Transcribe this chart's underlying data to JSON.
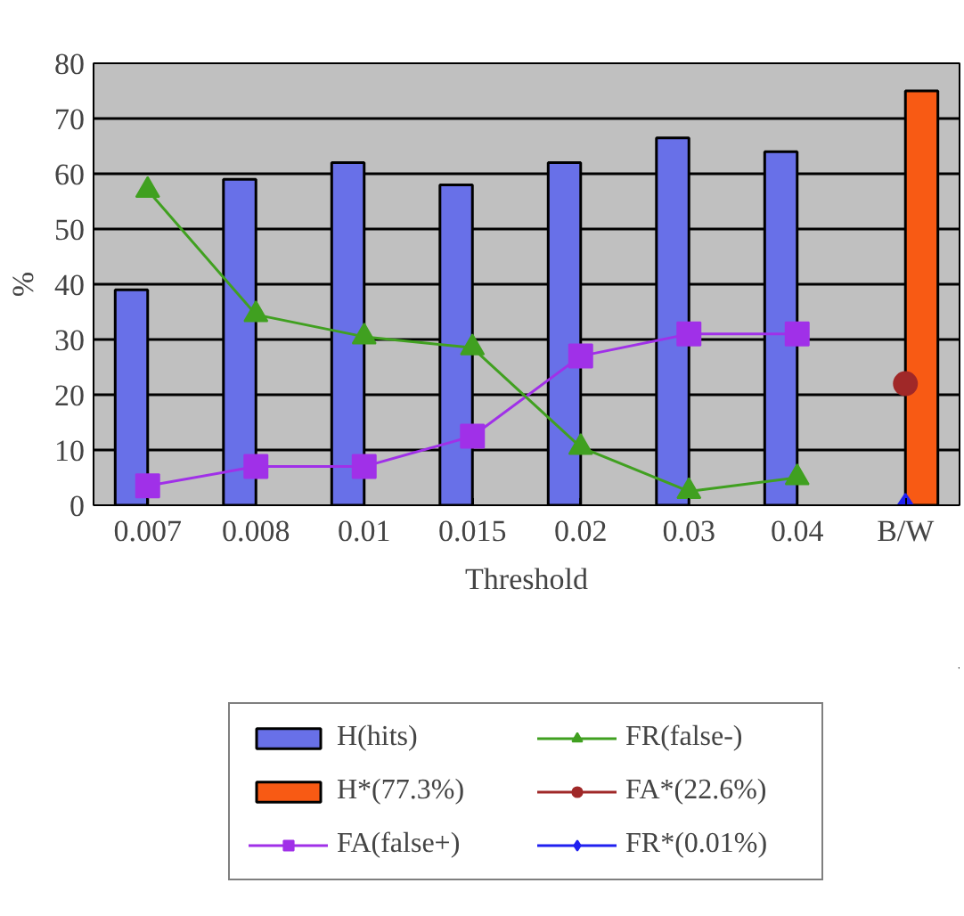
{
  "chart_data": {
    "type": "bar",
    "xlabel": "Threshold",
    "ylabel": "%",
    "categories": [
      "0.007",
      "0.008",
      "0.01",
      "0.015",
      "0.02",
      "0.03",
      "0.04",
      "B/W"
    ],
    "ylim": [
      0,
      80
    ],
    "yticks": [
      0,
      10,
      20,
      30,
      40,
      50,
      60,
      70,
      80
    ],
    "grid": "y",
    "legend": "bottom",
    "series": [
      {
        "name": "H(hits)",
        "color": "#6870e8",
        "values": [
          39,
          59,
          62,
          58,
          62,
          66.5,
          64,
          null
        ]
      },
      {
        "name": "H*(77.3%)",
        "color": "#f85a14",
        "values": [
          null,
          null,
          null,
          null,
          null,
          null,
          null,
          75
        ]
      },
      {
        "name": "FA(false+)",
        "type": "line",
        "color": "#a030e8",
        "marker": "square",
        "values": [
          3.5,
          7,
          7,
          12.5,
          27,
          31,
          31,
          null
        ]
      },
      {
        "name": "FR(false-)",
        "type": "line",
        "color": "#40a020",
        "marker": "triangle",
        "values": [
          57,
          34.5,
          30.5,
          28.5,
          10.5,
          2.5,
          5,
          null
        ]
      },
      {
        "name": "FA*(22.6%)",
        "type": "line",
        "color": "#a02828",
        "marker": "circle",
        "values": [
          null,
          null,
          null,
          null,
          null,
          null,
          null,
          22
        ]
      },
      {
        "name": "FR*(0.01%)",
        "type": "line",
        "color": "#2020f0",
        "marker": "diamond",
        "values": [
          null,
          null,
          null,
          null,
          null,
          null,
          null,
          0
        ]
      }
    ]
  }
}
